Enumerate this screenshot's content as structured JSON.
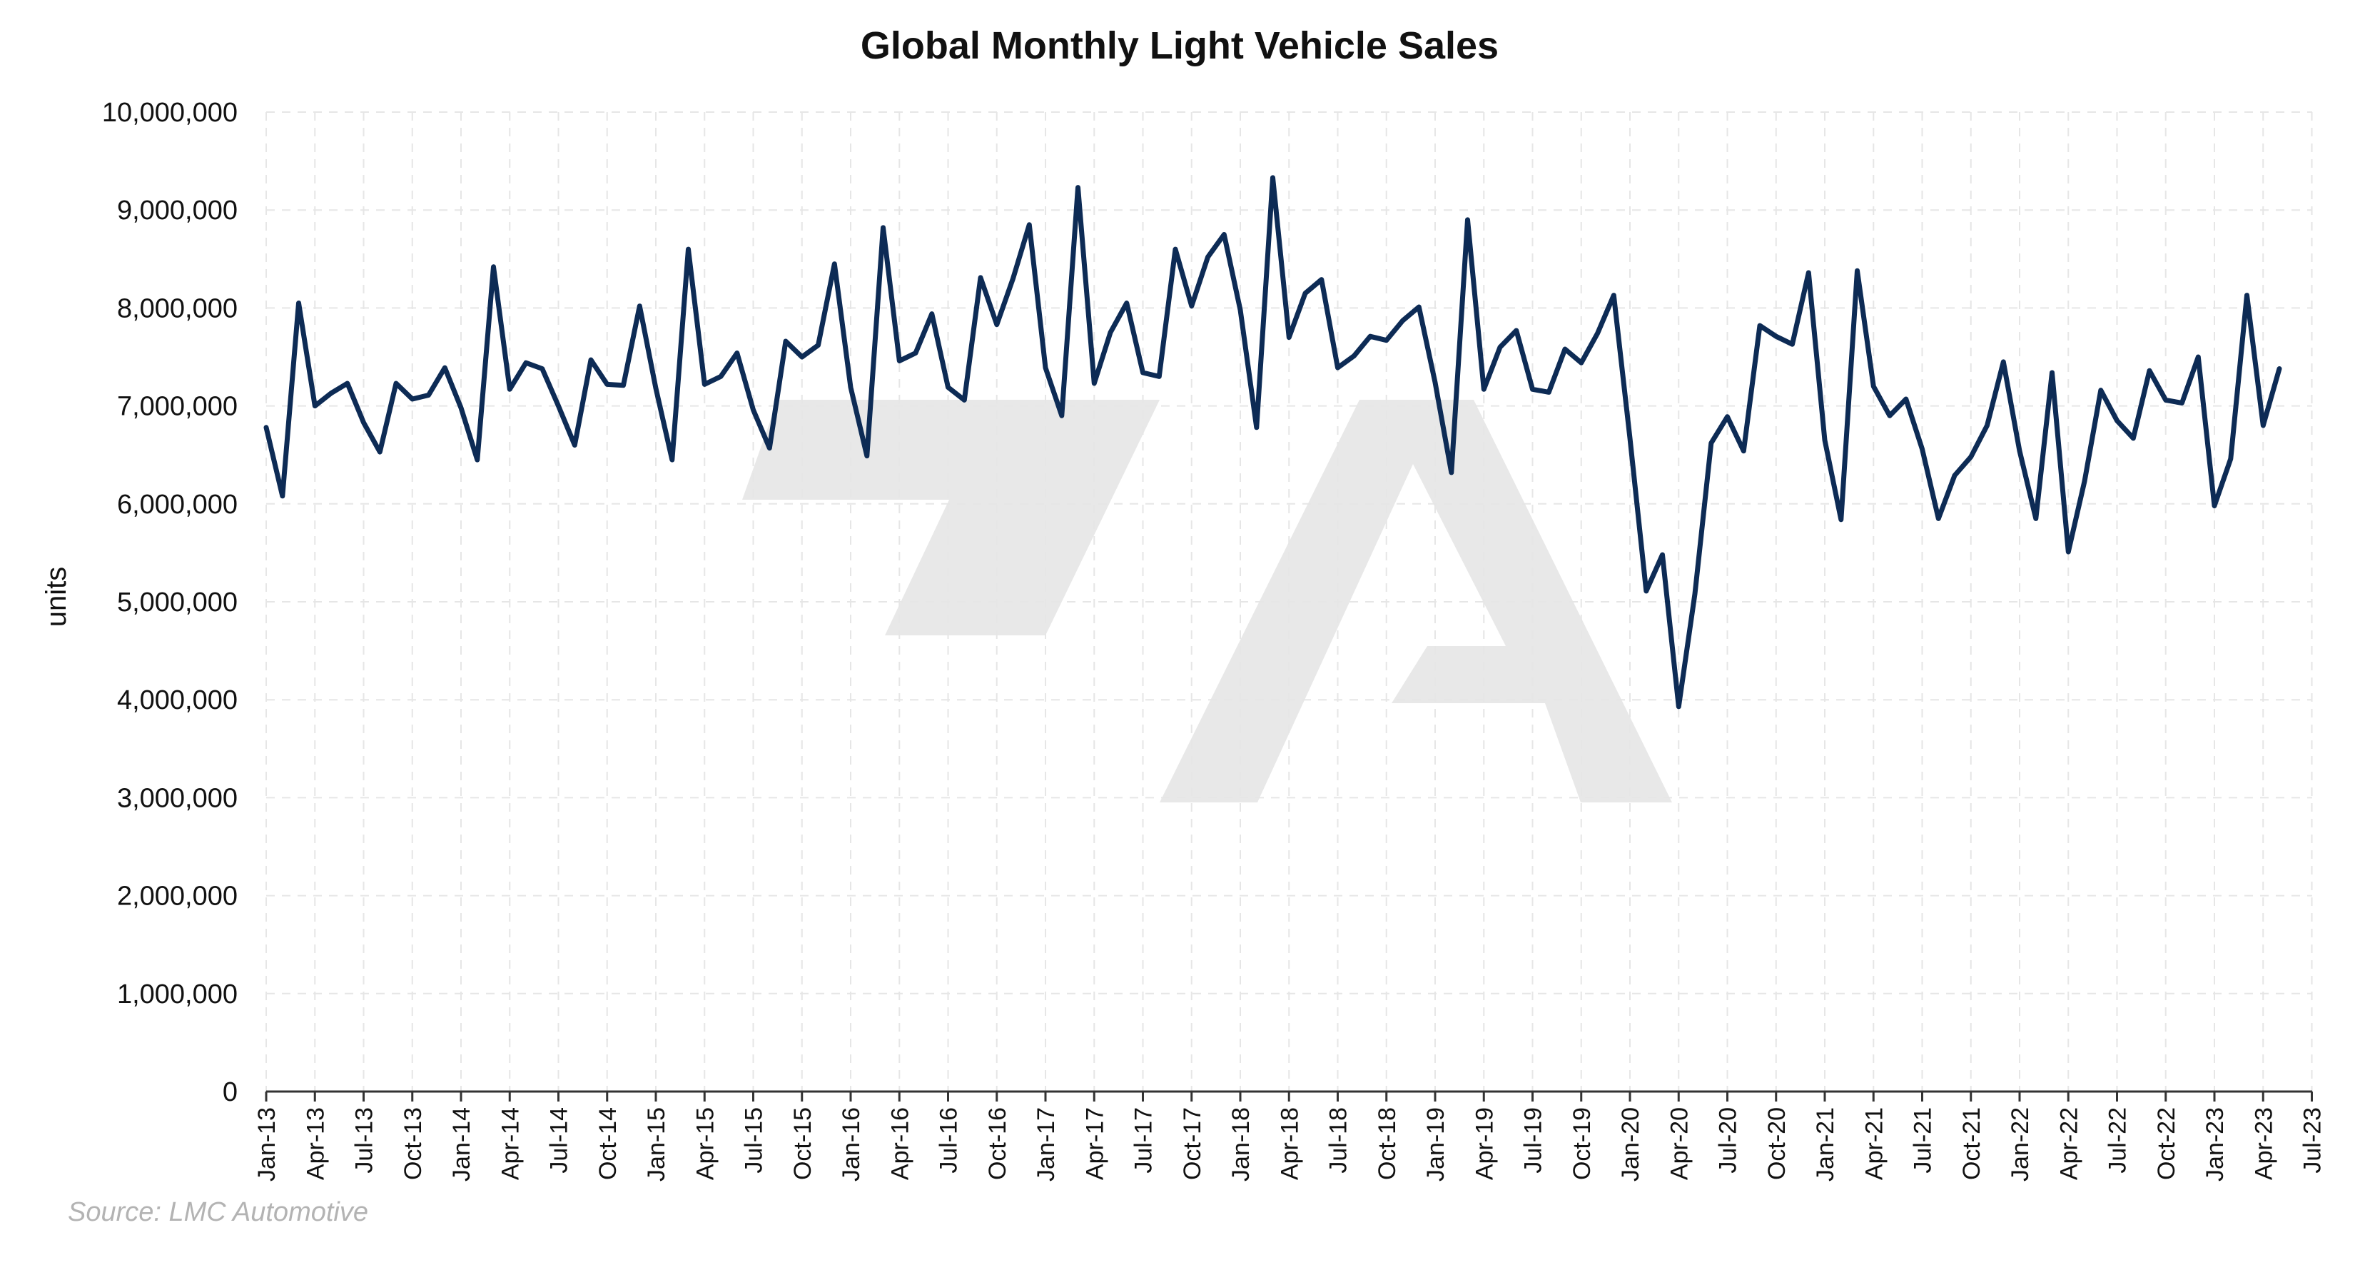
{
  "chart_data": {
    "type": "line",
    "title": "Global Monthly Light Vehicle Sales",
    "xlabel": "",
    "ylabel": "units",
    "source": "Source: LMC Automotive",
    "ylim": [
      0,
      10000000
    ],
    "y_ticks": [
      0,
      1000000,
      2000000,
      3000000,
      4000000,
      5000000,
      6000000,
      7000000,
      8000000,
      9000000,
      10000000
    ],
    "y_tick_labels": [
      "0",
      "1,000,000",
      "2,000,000",
      "3,000,000",
      "4,000,000",
      "5,000,000",
      "6,000,000",
      "7,000,000",
      "8,000,000",
      "9,000,000",
      "10,000,000"
    ],
    "x_tick_labels": [
      "Jan-13",
      "Apr-13",
      "Jul-13",
      "Oct-13",
      "Jan-14",
      "Apr-14",
      "Jul-14",
      "Oct-14",
      "Jan-15",
      "Apr-15",
      "Jul-15",
      "Oct-15",
      "Jan-16",
      "Apr-16",
      "Jul-16",
      "Oct-16",
      "Jan-17",
      "Apr-17",
      "Jul-17",
      "Oct-17",
      "Jan-18",
      "Apr-18",
      "Jul-18",
      "Oct-18",
      "Jan-19",
      "Apr-19",
      "Jul-19",
      "Oct-19",
      "Jan-20",
      "Apr-20",
      "Jul-20",
      "Oct-20",
      "Jan-21",
      "Apr-21",
      "Jul-21",
      "Oct-21",
      "Jan-22",
      "Apr-22",
      "Jul-22",
      "Oct-22",
      "Jan-23",
      "Apr-23",
      "Jul-23"
    ],
    "x_range": [
      "Jan-13",
      "Jul-23"
    ],
    "grid": true,
    "line_color": "#0d2b55",
    "watermark_color": "#e8e8e8",
    "series": [
      {
        "start": "Jan-13",
        "values": [
          6780000,
          6080000,
          8050000,
          7000000,
          7130000,
          7230000,
          6830000,
          6530000,
          7230000,
          7070000,
          7110000,
          7390000,
          6980000,
          6450000,
          8420000,
          7170000,
          7440000,
          7380000,
          7000000,
          6600000,
          7470000,
          7220000,
          7210000,
          8020000,
          7180000,
          6450000,
          8600000,
          7220000,
          7300000,
          7540000,
          6960000,
          6570000,
          7660000,
          7500000,
          7620000,
          8450000,
          7190000,
          6490000,
          8820000,
          7460000,
          7540000,
          7940000,
          7190000,
          7060000,
          8310000,
          7830000,
          8300000,
          8850000,
          7390000,
          6900000,
          9230000,
          7230000,
          7750000,
          8050000,
          7340000,
          7300000,
          8600000,
          8020000,
          8520000,
          8750000,
          7980000,
          6780000,
          9330000,
          7700000,
          8150000,
          8290000,
          7390000,
          7510000,
          7710000,
          7670000,
          7870000,
          8010000,
          7240000,
          6320000,
          8900000,
          7170000,
          7600000,
          7770000,
          7170000,
          7140000,
          7580000,
          7440000,
          7740000,
          8130000,
          6670000,
          5110000,
          5480000,
          3930000,
          5080000,
          6620000,
          6890000,
          6540000,
          7820000,
          7710000,
          7630000,
          8360000,
          6650000,
          5840000,
          8380000,
          7200000,
          6900000,
          7070000,
          6560000,
          5850000,
          6290000,
          6480000,
          6800000,
          7450000,
          6540000,
          5850000,
          7340000,
          5510000,
          6230000,
          7160000,
          6850000,
          6670000,
          7360000,
          7060000,
          7030000,
          7500000,
          5980000,
          6460000,
          8130000,
          6800000,
          7380000
        ]
      }
    ]
  }
}
